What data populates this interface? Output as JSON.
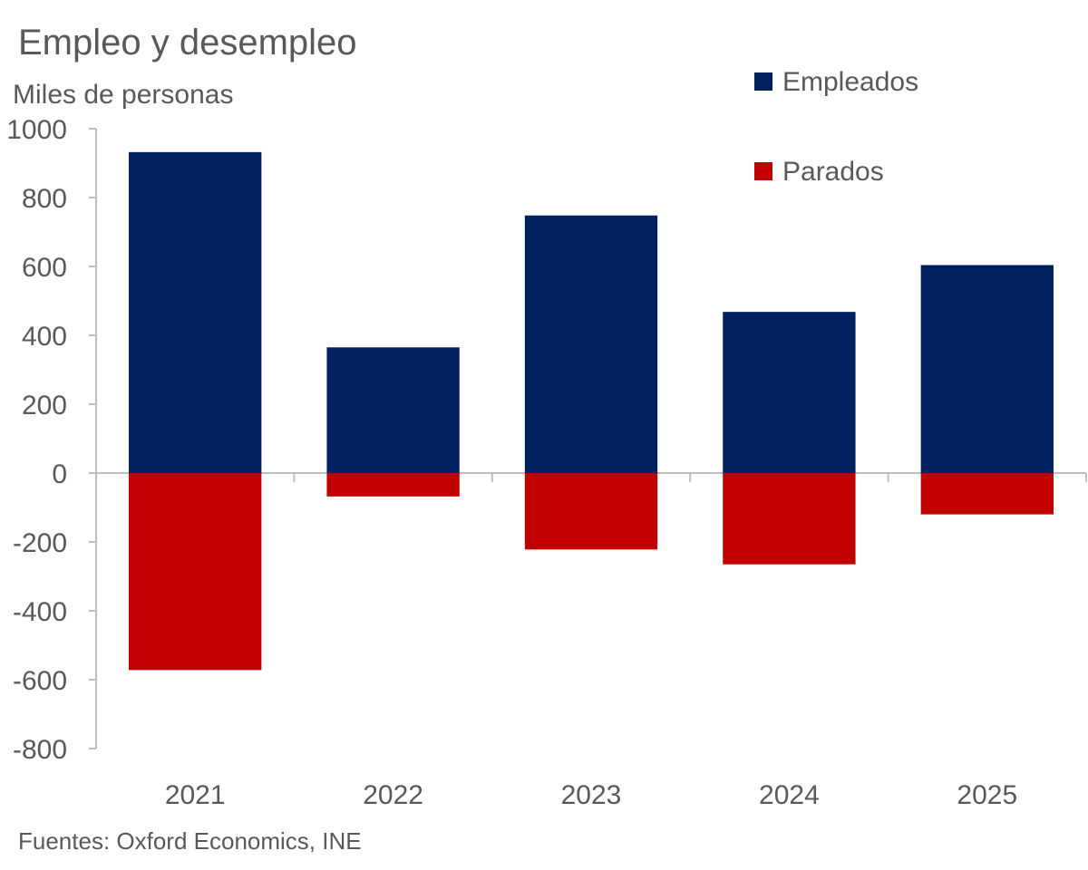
{
  "chart_data": {
    "type": "bar",
    "stacked": true,
    "title": "Empleo y desempleo",
    "ylabel": "Miles de personas",
    "source": "Fuentes: Oxford Economics, INE",
    "categories": [
      "2021",
      "2022",
      "2023",
      "2024",
      "2025"
    ],
    "ylim": [
      -800,
      1000
    ],
    "yticks": [
      1000,
      800,
      600,
      400,
      200,
      0,
      -200,
      -400,
      -600,
      -800
    ],
    "ytick_labels": [
      "1000",
      "800",
      "600",
      "400",
      "200",
      "0",
      "-200",
      "-400",
      "-600",
      "-800"
    ],
    "grid": false,
    "legend_position": "top-right",
    "series": [
      {
        "name": "Empleados",
        "color": "#002060",
        "values": [
          932,
          365,
          748,
          468,
          604
        ]
      },
      {
        "name": "Parados",
        "color": "#C00000",
        "values": [
          -572,
          -68,
          -222,
          -265,
          -120
        ]
      }
    ]
  }
}
